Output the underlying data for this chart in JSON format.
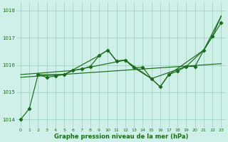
{
  "title": "Graphe pression niveau de la mer (hPa)",
  "bg_color": "#cff0e8",
  "grid_color": "#99ccbb",
  "line_color": "#1a6b1a",
  "xlim": [
    -0.5,
    23.5
  ],
  "ylim": [
    1013.7,
    1018.3
  ],
  "yticks": [
    1014,
    1015,
    1016,
    1017,
    1018
  ],
  "xticks": [
    0,
    1,
    2,
    3,
    4,
    5,
    6,
    7,
    8,
    9,
    10,
    11,
    12,
    13,
    14,
    15,
    16,
    17,
    18,
    19,
    20,
    21,
    22,
    23
  ],
  "line_main": {
    "x": [
      0,
      1,
      2,
      3,
      4,
      5,
      6,
      7,
      8,
      9,
      10,
      11,
      12,
      13,
      14,
      15,
      16,
      17,
      18,
      19,
      20,
      21,
      22,
      23
    ],
    "y": [
      1014.0,
      1014.4,
      1015.65,
      1015.55,
      1015.6,
      1015.65,
      1015.8,
      1015.85,
      1015.95,
      1016.35,
      1016.55,
      1016.15,
      1016.18,
      1015.9,
      1015.92,
      1015.5,
      1015.2,
      1015.65,
      1015.78,
      1015.95,
      1015.95,
      1016.55,
      1017.05,
      1017.55
    ]
  },
  "line_peaks": {
    "x": [
      2,
      5,
      9,
      10,
      11,
      12,
      13,
      15,
      16,
      17,
      21,
      22,
      23
    ],
    "y": [
      1015.65,
      1015.65,
      1016.35,
      1016.55,
      1016.15,
      1016.18,
      1015.9,
      1015.5,
      1015.2,
      1015.65,
      1016.55,
      1017.05,
      1017.8
    ]
  },
  "line_smooth1": {
    "x": [
      0,
      6,
      12,
      15,
      19,
      21,
      23
    ],
    "y": [
      1015.65,
      1015.8,
      1016.18,
      1015.5,
      1015.95,
      1016.55,
      1017.8
    ]
  },
  "line_smooth2": {
    "x": [
      0,
      23
    ],
    "y": [
      1015.55,
      1016.05
    ]
  }
}
